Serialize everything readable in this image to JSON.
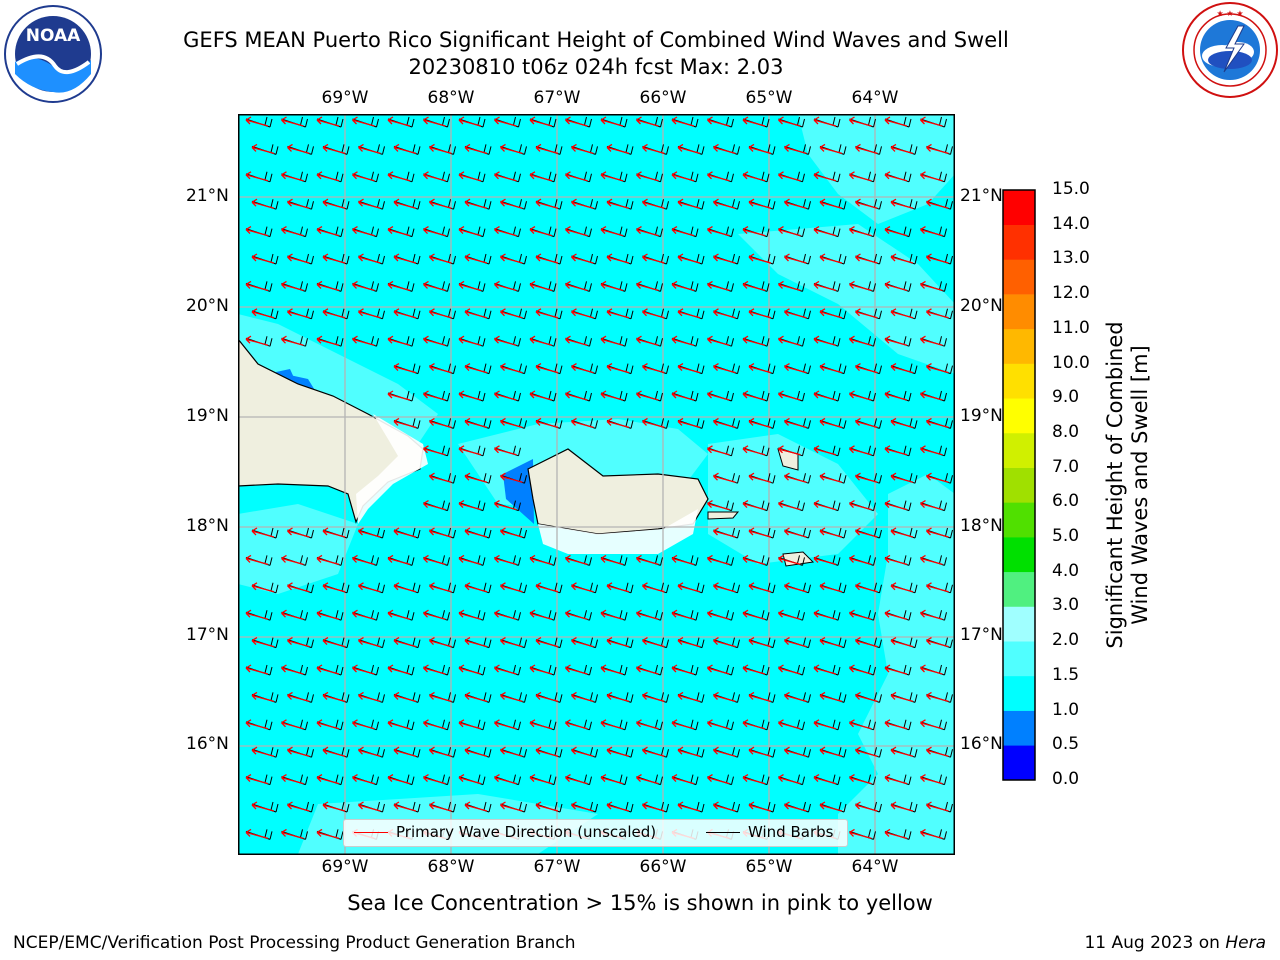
{
  "title": {
    "line1": "GEFS MEAN Puerto Rico Significant Height of Combined Wind Waves and Swell",
    "line2": "20230810 t06z 024h fcst   Max: 2.03"
  },
  "logos": {
    "left": {
      "text": "NOAA",
      "ring_text": "NATIONAL OCEANIC AND ATMOSPHERIC ADMINISTRATION · U.S. DEPARTMENT OF COMMERCE"
    },
    "right": {
      "ring_text": "NATIONAL WEATHER SERVICE"
    }
  },
  "map": {
    "lon_ticks": [
      "69°W",
      "68°W",
      "67°W",
      "66°W",
      "65°W",
      "64°W"
    ],
    "lon_values": [
      -69,
      -68,
      -67,
      -66,
      -65,
      -64
    ],
    "lat_ticks": [
      "21°N",
      "20°N",
      "19°N",
      "18°N",
      "17°N",
      "16°N"
    ],
    "lat_values": [
      21,
      20,
      19,
      18,
      17,
      16
    ],
    "extent": {
      "lon_min": -70,
      "lon_max": -63.25,
      "lat_min": 15,
      "lat_max": 21.75
    },
    "colors": {
      "land": "#efefdf",
      "coast": "#000000",
      "sea_1_15": "#00ffff",
      "sea_15_2": "#50ffff",
      "sea_05_1": "#0080ff",
      "grid": "#b4b4b4",
      "wave_arrow": "#ff0000",
      "wind_barb": "#000000"
    }
  },
  "legend": {
    "primary_wave": "Primary Wave Direction (unscaled)",
    "wind_barbs": "Wind Barbs"
  },
  "colorbar": {
    "label_line1": "Significant Height of Combined",
    "label_line2": "Wind Waves and Swell [m]",
    "ticks": [
      "0.0",
      "0.5",
      "1.0",
      "1.5",
      "2.0",
      "3.0",
      "4.0",
      "5.0",
      "6.0",
      "7.0",
      "8.0",
      "9.0",
      "10.0",
      "11.0",
      "12.0",
      "13.0",
      "14.0",
      "15.0"
    ],
    "colors": [
      "#0000ff",
      "#0080ff",
      "#00ffff",
      "#50ffff",
      "#a0ffff",
      "#50f080",
      "#00e000",
      "#50e000",
      "#a0e000",
      "#d0f000",
      "#ffff00",
      "#ffe000",
      "#ffb800",
      "#ff8c00",
      "#ff6000",
      "#ff3000",
      "#ff0000"
    ]
  },
  "subtitle": "Sea Ice Concentration > 15% is shown in pink to yellow",
  "footer": {
    "left": "NCEP/EMC/Verification Post Processing Product Generation Branch",
    "right_prefix": "11 Aug 2023 on ",
    "right_host": "Hera"
  }
}
